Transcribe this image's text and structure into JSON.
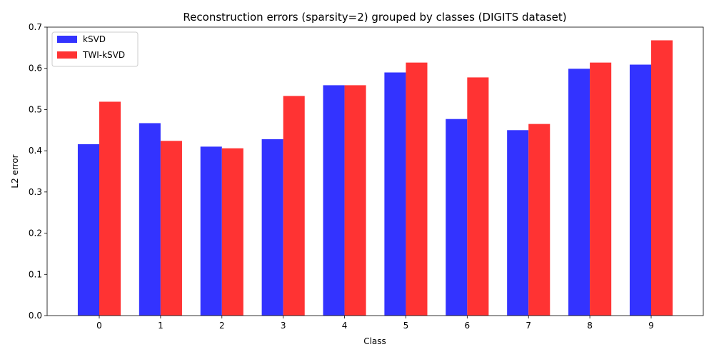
{
  "chart_data": {
    "type": "bar",
    "title": "Reconstruction errors (sparsity=2) grouped by classes (DIGITS dataset)",
    "xlabel": "Class",
    "ylabel": "L2 error",
    "categories": [
      "0",
      "1",
      "2",
      "3",
      "4",
      "5",
      "6",
      "7",
      "8",
      "9"
    ],
    "series": [
      {
        "name": "kSVD",
        "color": "#3333ff",
        "values": [
          0.416,
          0.467,
          0.41,
          0.428,
          0.559,
          0.59,
          0.477,
          0.45,
          0.599,
          0.609
        ]
      },
      {
        "name": "TWI-kSVD",
        "color": "#ff3333",
        "values": [
          0.519,
          0.424,
          0.406,
          0.533,
          0.559,
          0.614,
          0.578,
          0.465,
          0.614,
          0.668
        ]
      }
    ],
    "ylim": [
      0,
      0.7
    ],
    "yticks": [
      0.0,
      0.1,
      0.2,
      0.3,
      0.4,
      0.5,
      0.6,
      0.7
    ],
    "ytick_labels": [
      "0.0",
      "0.1",
      "0.2",
      "0.3",
      "0.4",
      "0.5",
      "0.6",
      "0.7"
    ],
    "grid": false,
    "legend_position": "top-left"
  }
}
